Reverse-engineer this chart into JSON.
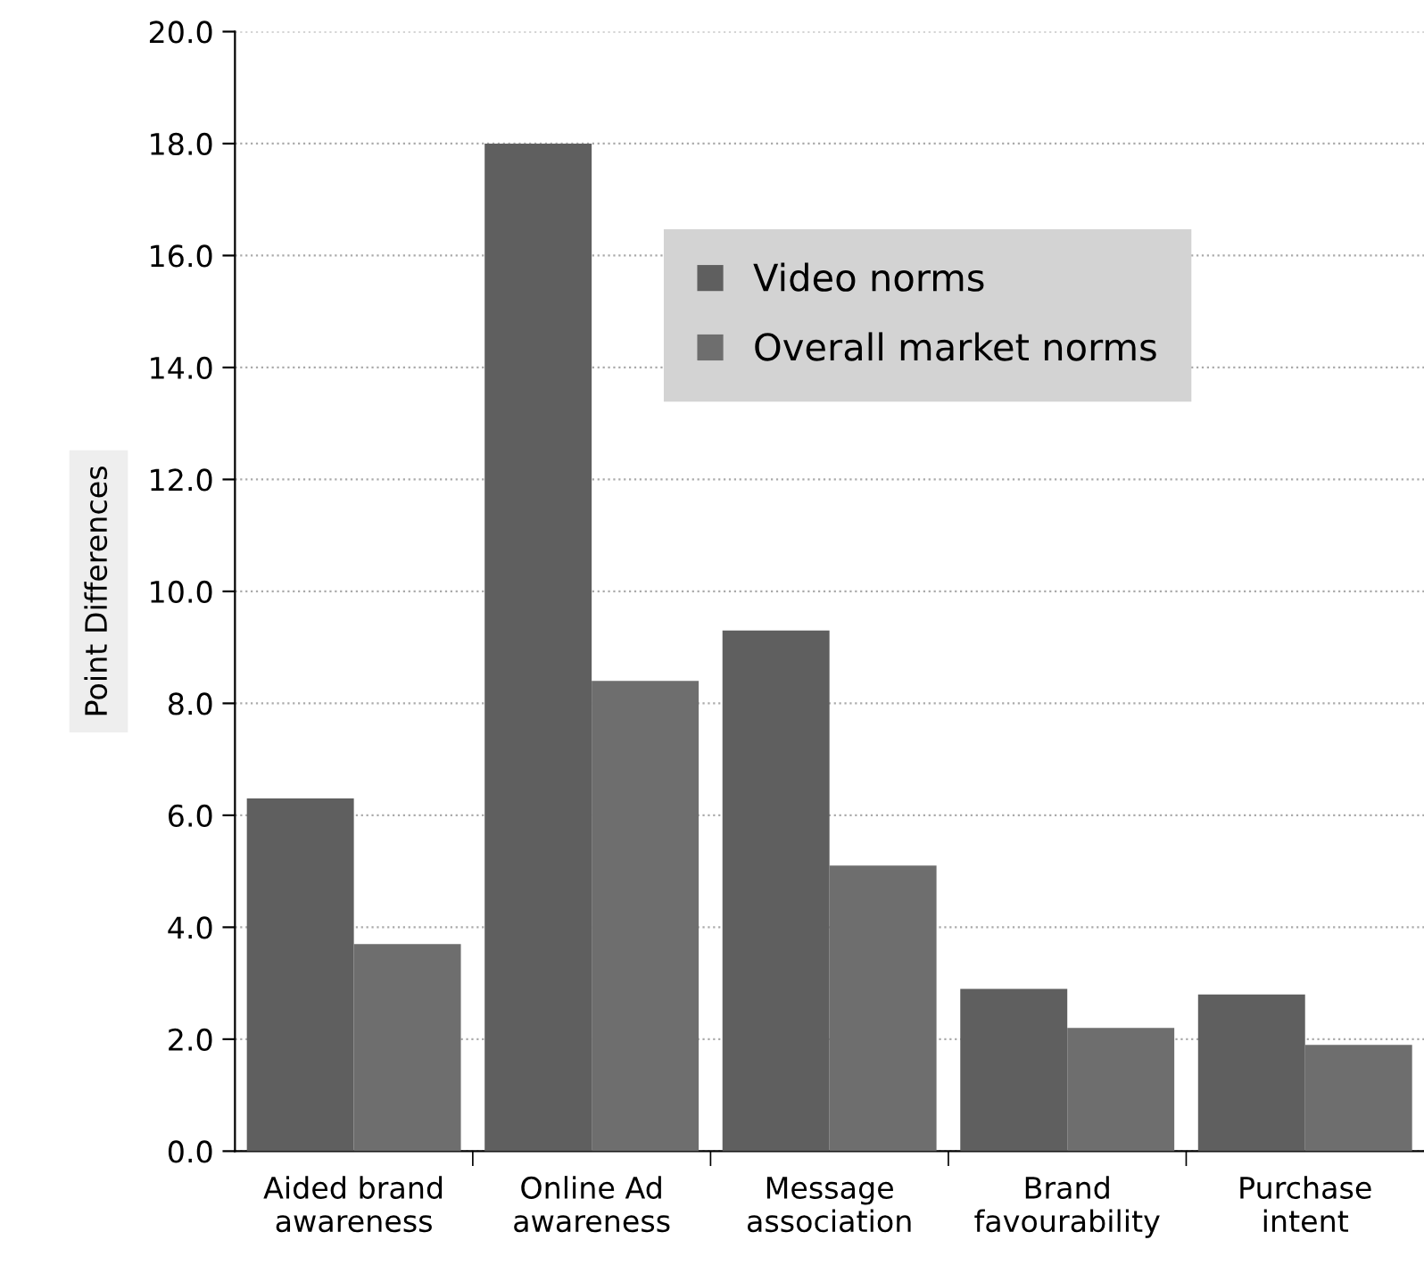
{
  "chart_data": {
    "type": "bar",
    "ylabel": "Point Differences",
    "categories": [
      "Aided brand\nawareness",
      "Online Ad\nawareness",
      "Message\nassociation",
      "Brand\nfavourability",
      "Purchase\nintent"
    ],
    "series": [
      {
        "name": "Video norms",
        "color": "#5f5f5f",
        "values": [
          6.3,
          18.0,
          9.3,
          2.9,
          2.8
        ]
      },
      {
        "name": "Overall market norms",
        "color": "#6e6e6e",
        "values": [
          3.7,
          8.4,
          5.1,
          2.2,
          1.9
        ]
      }
    ],
    "ylim": [
      0,
      20
    ],
    "yticks": [
      {
        "value": 0,
        "label": "0.0"
      },
      {
        "value": 2,
        "label": "2.0"
      },
      {
        "value": 4,
        "label": "4.0"
      },
      {
        "value": 6,
        "label": "6.0"
      },
      {
        "value": 8,
        "label": "8.0"
      },
      {
        "value": 10,
        "label": "10.0"
      },
      {
        "value": 12,
        "label": "12.0"
      },
      {
        "value": 14,
        "label": "14.0"
      },
      {
        "value": 16,
        "label": "16.0"
      },
      {
        "value": 18,
        "label": "18.0"
      },
      {
        "value": 20,
        "label": "20.0"
      }
    ],
    "grid": "y",
    "legend": "top right"
  }
}
